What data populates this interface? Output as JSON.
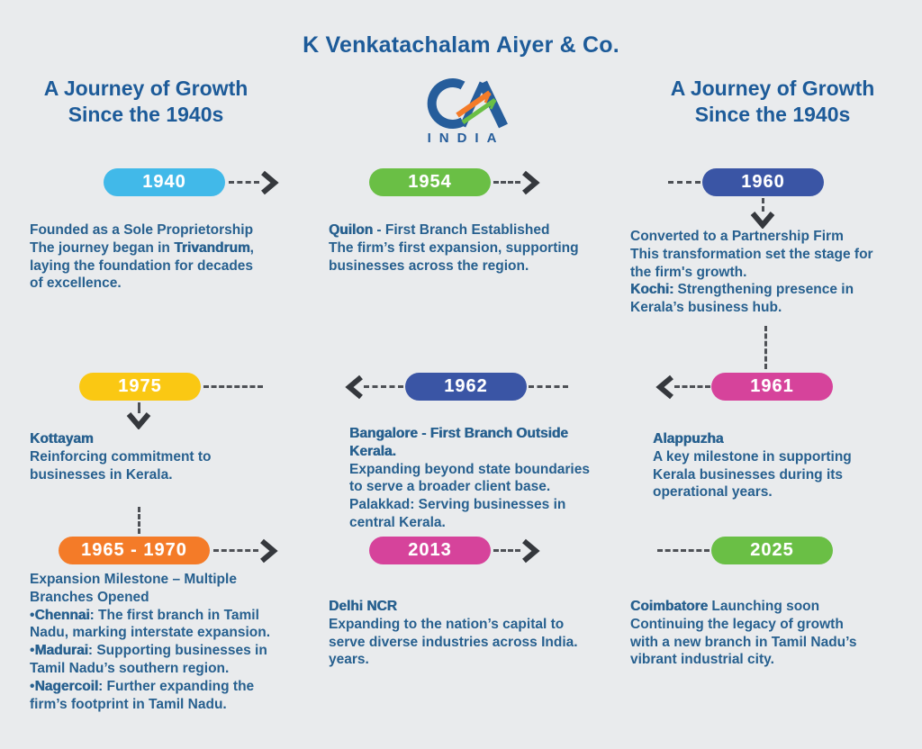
{
  "page": {
    "title": "K Venkatachalam Aiyer & Co.",
    "left_heading": {
      "line1": "A Journey of Growth",
      "line2": "Since the 1940s"
    },
    "right_heading": {
      "line1": "A Journey of Growth",
      "line2": "Since the 1940s"
    },
    "logo": {
      "monogram": "CA",
      "caption": "INDIA"
    },
    "background_color": "#e9ebed",
    "heading_color": "#1d5b99",
    "body_text_color": "#27608f",
    "arrow_color": "#35383d"
  },
  "milestones": {
    "m1940": {
      "year": "1940",
      "color": "#41b9e9",
      "segments": [
        {
          "t": "Founded as a Sole Proprietorship\nThe journey began in ",
          "b": false
        },
        {
          "t": "Trivandrum",
          "b": true
        },
        {
          "t": ",\nlaying the foundation for decades\nof excellence.",
          "b": false
        }
      ]
    },
    "m1954": {
      "year": "1954",
      "color": "#6abf45",
      "segments": [
        {
          "t": "Quilon",
          "b": true
        },
        {
          "t": " - First Branch Established\nThe firm’s first expansion, supporting\nbusinesses across the region.",
          "b": false
        }
      ]
    },
    "m1960": {
      "year": "1960",
      "color": "#3a55a5",
      "segments": [
        {
          "t": "Converted to a Partnership Firm\nThis transformation set the stage for\nthe firm's growth.\n",
          "b": false
        },
        {
          "t": "Kochi:",
          "b": true
        },
        {
          "t": " Strengthening presence in\nKerala’s business hub.",
          "b": false
        }
      ]
    },
    "m1975": {
      "year": "1975",
      "color": "#fac813",
      "segments": [
        {
          "t": "Kottayam",
          "b": true
        },
        {
          "t": "\nReinforcing commitment to\nbusinesses in Kerala.",
          "b": false
        }
      ]
    },
    "m1962": {
      "year": "1962",
      "color": "#3a55a5",
      "segments": [
        {
          "t": "Bangalore - First Branch Outside\nKerala.",
          "b": true
        },
        {
          "t": "\nExpanding beyond state boundaries\nto serve a broader client base.\nPalakkad: Serving businesses in\ncentral Kerala.",
          "b": false
        }
      ]
    },
    "m1961": {
      "year": "1961",
      "color": "#d6439b",
      "segments": [
        {
          "t": "Alappuzha",
          "b": true
        },
        {
          "t": "\nA key milestone in  supporting\nKerala businesses during its\noperational years.",
          "b": false
        }
      ]
    },
    "m1965_1970": {
      "year": "1965 - 1970",
      "color": "#f47b28",
      "segments": [
        {
          "t": "Expansion Milestone – Multiple\nBranches Opened\n•",
          "b": false
        },
        {
          "t": "Chennai",
          "b": true
        },
        {
          "t": ": The first branch in Tamil\nNadu, marking interstate expansion.\n•",
          "b": false
        },
        {
          "t": "Madurai",
          "b": true
        },
        {
          "t": ": Supporting businesses in\nTamil Nadu’s southern region.\n•",
          "b": false
        },
        {
          "t": "Nagercoil",
          "b": true
        },
        {
          "t": ": Further expanding the\nfirm’s footprint in Tamil Nadu.",
          "b": false
        }
      ]
    },
    "m2013": {
      "year": "2013",
      "color": "#d6439b",
      "segments": [
        {
          "t": "Delhi NCR",
          "b": true
        },
        {
          "t": "\nExpanding to the nation’s capital to\nserve diverse industries across India.\nyears.",
          "b": false
        }
      ]
    },
    "m2025": {
      "year": "2025",
      "color": "#6abf45",
      "segments": [
        {
          "t": "Coimbatore",
          "b": true
        },
        {
          "t": " Launching soon\nContinuing the legacy of growth\nwith a new branch in Tamil Nadu’s\nvibrant industrial city.",
          "b": false
        }
      ]
    }
  }
}
